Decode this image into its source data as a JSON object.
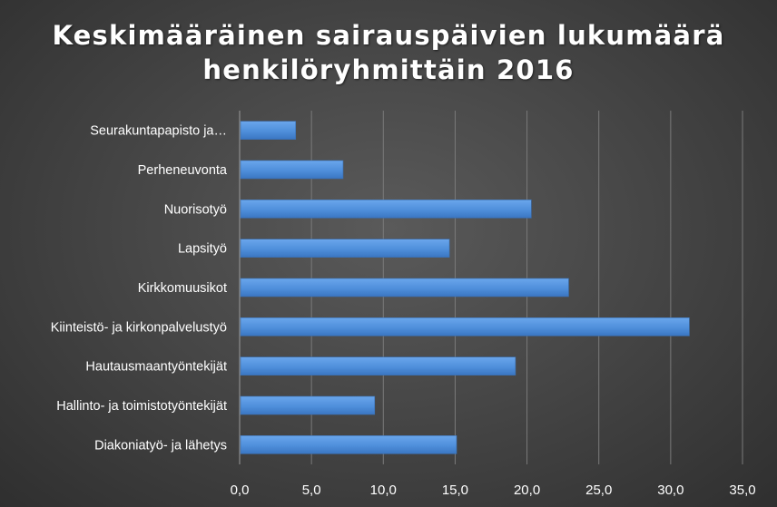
{
  "chart_data": {
    "type": "bar",
    "orientation": "horizontal",
    "title_lines": [
      "Keskimääräinen sairauspäivien lukumäärä",
      "henkilöryhmittäin 2016"
    ],
    "categories": [
      "Seurakuntapapisto ja…",
      "Perheneuvonta",
      "Nuorisotyö",
      "Lapsityö",
      "Kirkkomuusikot",
      "Kiinteistö- ja kirkonpalvelustyö",
      "Hautausmaantyöntekijät",
      "Hallinto- ja toimistotyöntekijät",
      "Diakoniatyö- ja lähetys"
    ],
    "values": [
      3.9,
      7.2,
      20.3,
      14.6,
      22.9,
      31.3,
      19.2,
      9.4,
      15.1
    ],
    "xlim": [
      0,
      35
    ],
    "xticks": [
      "0,0",
      "5,0",
      "10,0",
      "15,0",
      "20,0",
      "25,0",
      "30,0",
      "35,0"
    ],
    "grid": true,
    "bar_color": "#4e8fd8",
    "background": "#474747"
  }
}
